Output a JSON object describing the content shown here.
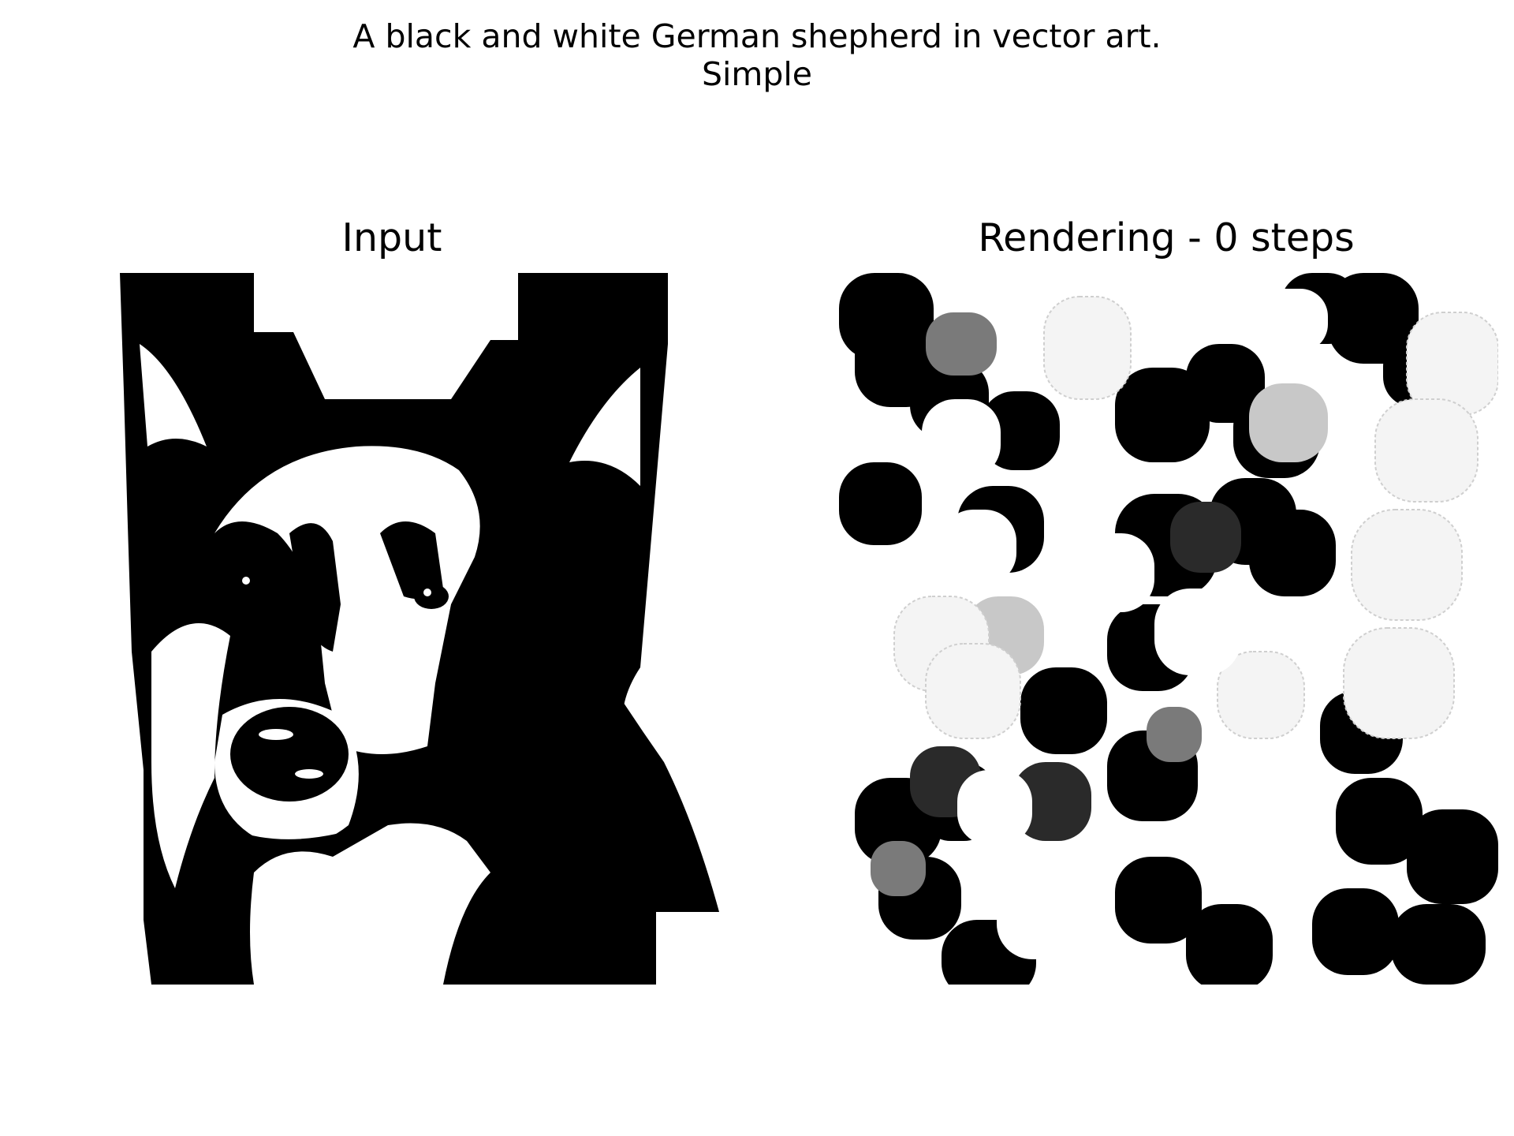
{
  "figure": {
    "suptitle_line1": "A black and white German shepherd in vector art.",
    "suptitle_line2": "Simple"
  },
  "panels": [
    {
      "title": "Input",
      "content": "German shepherd portrait, black and white"
    },
    {
      "title": "Rendering - 0 steps",
      "content": "Scattered rounded blobs in black, white and gray"
    }
  ],
  "colors": {
    "black": "#000000",
    "white": "#ffffff",
    "gray_dark": "#2a2a2a",
    "gray_mid": "#7a7a7a",
    "gray_light": "#c8c8c8"
  }
}
